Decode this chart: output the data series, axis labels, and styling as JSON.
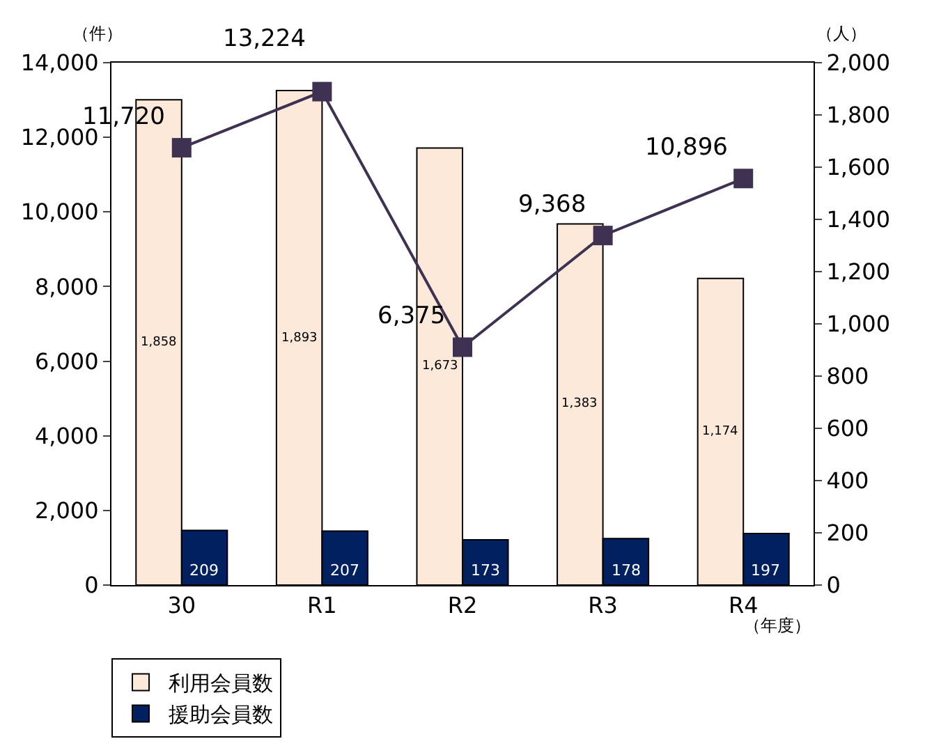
{
  "chart_data": {
    "type": "bar",
    "categories": [
      "30",
      "R1",
      "R2",
      "R3",
      "R4"
    ],
    "ylabel": "（件）",
    "y2label": "（人）",
    "xlabel": "（年度）",
    "series": [
      {
        "name": "利用会員数",
        "color": "#fde9d9",
        "values": [
          1858,
          1893,
          1673,
          1383,
          1174
        ],
        "value_labels": [
          "1,858",
          "1,893",
          "1,673",
          "1,383",
          "1,174"
        ],
        "axis": "y2"
      },
      {
        "name": "援助会員数",
        "color": "#002060",
        "values": [
          209,
          207,
          173,
          178,
          197
        ],
        "value_labels": [
          "209",
          "207",
          "173",
          "178",
          "197"
        ],
        "axis": "y2"
      },
      {
        "type": "line",
        "color": "#3f3151",
        "values": [
          11720,
          13224,
          6375,
          9368,
          10896
        ],
        "value_labels": [
          "11,720",
          "13,224",
          "6,375",
          "9,368",
          "10,896"
        ],
        "axis": "y",
        "marker": "square"
      }
    ],
    "ylim": [
      0,
      14000
    ],
    "yticks": [
      {
        "value": 0,
        "label": "0"
      },
      {
        "value": 2000,
        "label": "2,000"
      },
      {
        "value": 4000,
        "label": "4,000"
      },
      {
        "value": 6000,
        "label": "6,000"
      },
      {
        "value": 8000,
        "label": "8,000"
      },
      {
        "value": 10000,
        "label": "10,000"
      },
      {
        "value": 12000,
        "label": "12,000"
      },
      {
        "value": 14000,
        "label": "14,000"
      }
    ],
    "y2lim": [
      0,
      2000
    ],
    "y2ticks": [
      {
        "value": 0,
        "label": "0"
      },
      {
        "value": 200,
        "label": "200"
      },
      {
        "value": 400,
        "label": "400"
      },
      {
        "value": 600,
        "label": "600"
      },
      {
        "value": 800,
        "label": "800"
      },
      {
        "value": 1000,
        "label": "1,000"
      },
      {
        "value": 1200,
        "label": "1,200"
      },
      {
        "value": 1400,
        "label": "1,400"
      },
      {
        "value": 1600,
        "label": "1,600"
      },
      {
        "value": 1800,
        "label": "1,800"
      },
      {
        "value": 2000,
        "label": "2,000"
      }
    ],
    "legend": "bottom"
  }
}
